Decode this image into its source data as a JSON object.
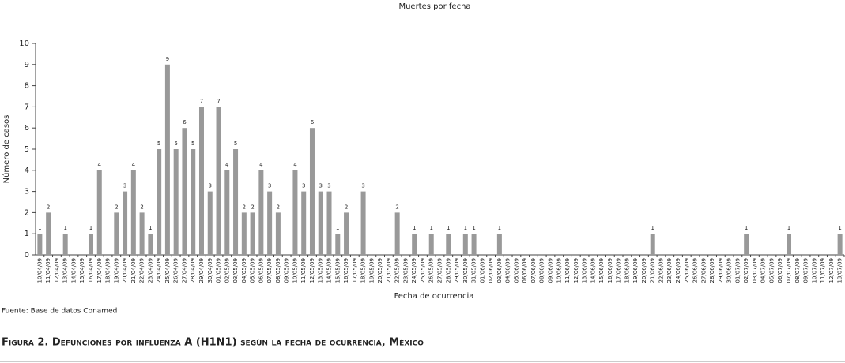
{
  "chart_data": {
    "type": "bar",
    "title": "Muertes por fecha",
    "y_label": "Número de casos",
    "x_label": "Fecha de ocurrencia",
    "source": "Fuente: Base de datos Conamed",
    "caption": "Figura 2. Defunciones por influenza A (H1N1) según la fecha de ocurrencia, México",
    "color": "#999999",
    "categories": [
      "10/04/09",
      "11/04/09",
      "12/04/09",
      "13/04/09",
      "14/04/09",
      "15/04/09",
      "16/04/09",
      "17/04/09",
      "18/04/09",
      "19/04/09",
      "20/04/09",
      "21/04/09",
      "22/04/09",
      "23/04/09",
      "24/04/09",
      "25/04/09",
      "26/04/09",
      "27/04/09",
      "28/04/09",
      "29/04/09",
      "30/04/09",
      "01/05/09",
      "02/05/09",
      "03/05/09",
      "04/05/09",
      "05/05/09",
      "06/05/09",
      "07/05/09",
      "08/05/09",
      "09/05/09",
      "10/05/09",
      "11/05/09",
      "12/05/09",
      "13/05/09",
      "14/05/09",
      "15/05/09",
      "16/05/09",
      "17/05/09",
      "18/05/09",
      "19/05/09",
      "20/05/09",
      "21/05/09",
      "22/05/09",
      "23/05/09",
      "24/05/09",
      "25/05/09",
      "26/05/09",
      "27/05/09",
      "28/05/09",
      "29/05/09",
      "30/05/09",
      "31/05/09",
      "01/06/09",
      "02/06/09",
      "03/06/09",
      "04/06/09",
      "05/06/09",
      "06/06/09",
      "07/06/09",
      "08/06/09",
      "09/06/09",
      "10/06/09",
      "11/06/09",
      "12/06/09",
      "13/06/09",
      "14/06/09",
      "15/06/09",
      "16/06/09",
      "17/06/09",
      "18/06/09",
      "19/06/09",
      "20/06/09",
      "21/06/09",
      "22/06/09",
      "23/06/09",
      "24/06/09",
      "25/06/09",
      "26/06/09",
      "27/06/09",
      "28/06/09",
      "29/06/09",
      "30/06/09",
      "01/07/09",
      "02/07/09",
      "03/07/09",
      "04/07/09",
      "05/07/09",
      "06/07/09",
      "07/07/09",
      "08/07/09",
      "09/07/09",
      "10/07/09",
      "11/07/09",
      "12/07/09",
      "13/07/09"
    ],
    "values": [
      1,
      2,
      0,
      1,
      0,
      0,
      1,
      4,
      0,
      2,
      3,
      4,
      2,
      1,
      5,
      9,
      5,
      6,
      5,
      7,
      3,
      7,
      4,
      5,
      2,
      2,
      4,
      3,
      2,
      0,
      4,
      3,
      6,
      3,
      3,
      1,
      2,
      0,
      3,
      0,
      0,
      0,
      2,
      0,
      1,
      0,
      1,
      0,
      1,
      0,
      1,
      1,
      0,
      0,
      1,
      0,
      0,
      0,
      0,
      0,
      0,
      0,
      0,
      0,
      0,
      0,
      0,
      0,
      0,
      0,
      0,
      0,
      1,
      0,
      0,
      0,
      0,
      0,
      0,
      0,
      0,
      0,
      0,
      1,
      0,
      0,
      0,
      0,
      1,
      0,
      0,
      0,
      0,
      0,
      1
    ],
    "ylim": [
      0,
      10
    ],
    "yticks": [
      0,
      1,
      2,
      3,
      4,
      5,
      6,
      7,
      8,
      9,
      10
    ]
  }
}
